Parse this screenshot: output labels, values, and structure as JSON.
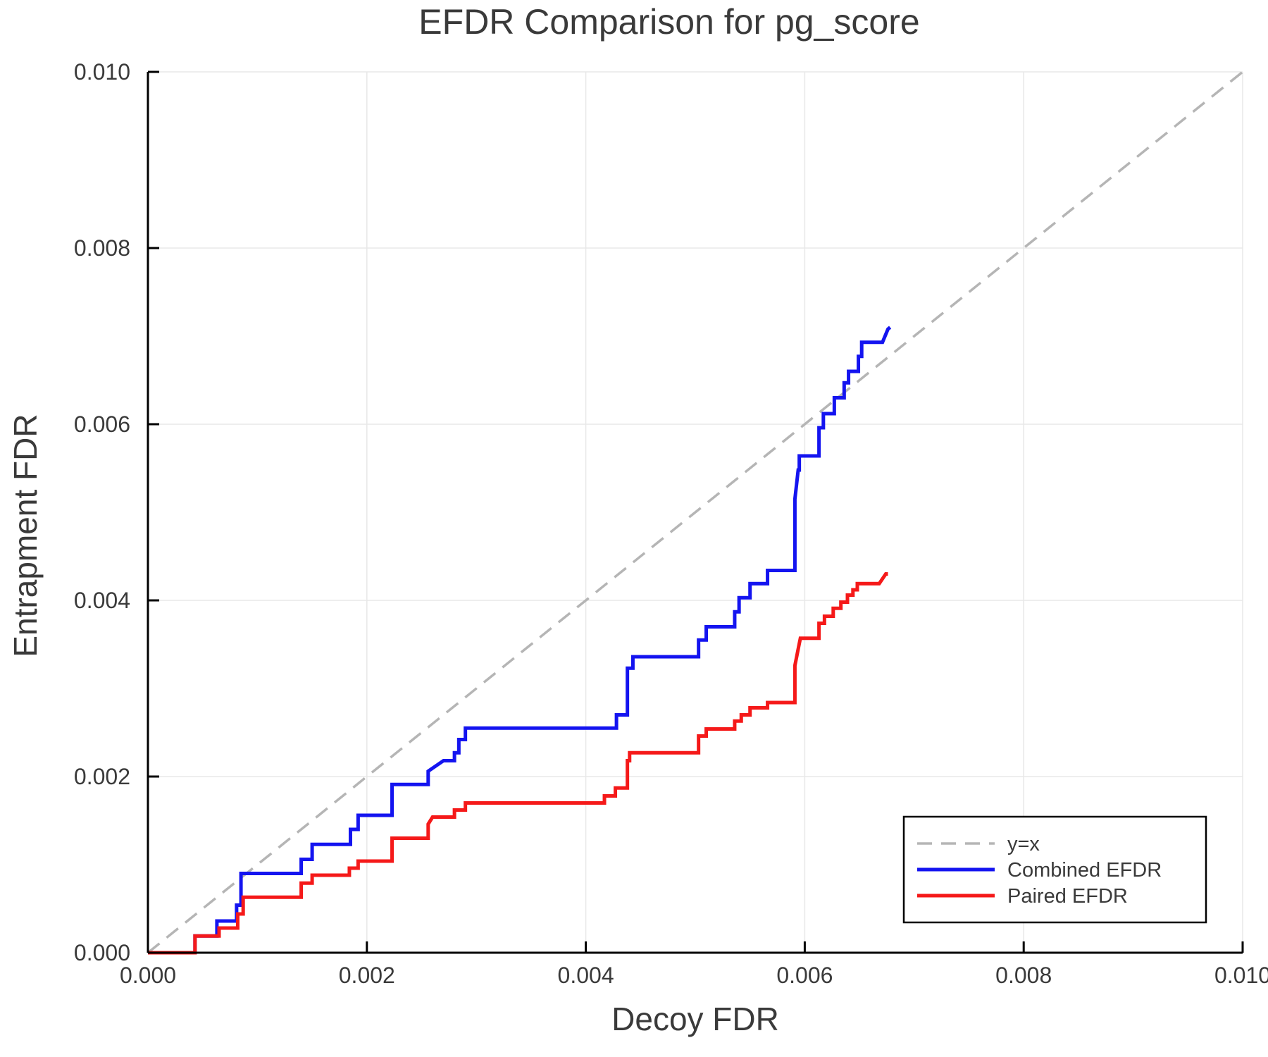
{
  "text_color": "#3a3a3a",
  "background_color": "#ffffff",
  "axes": {
    "x": {
      "label": "Decoy FDR",
      "ticks": [
        0.0,
        0.002,
        0.004,
        0.006,
        0.008,
        0.01
      ],
      "tick_format_decimals": 3
    },
    "y": {
      "label": "Entrapment FDR",
      "ticks": [
        0.0,
        0.002,
        0.004,
        0.006,
        0.008,
        0.01
      ],
      "tick_format_decimals": 3
    }
  },
  "legend": {
    "position": "lower right",
    "border_color": "#000000",
    "items": [
      {
        "label": "y=x"
      },
      {
        "label": "Combined EFDR"
      },
      {
        "label": "Paired EFDR"
      }
    ]
  },
  "chart_data": {
    "type": "line",
    "title": "EFDR Comparison for pg_score",
    "xlabel": "Decoy FDR",
    "ylabel": "Entrapment FDR",
    "xlim": [
      0.0,
      0.01
    ],
    "ylim": [
      0.0,
      0.01
    ],
    "grid": true,
    "legend_position": "lower right",
    "series": [
      {
        "name": "y=x",
        "color": "#b5b5b5",
        "dash": true,
        "points": [
          [
            0.0,
            0.0
          ],
          [
            0.01,
            0.01
          ]
        ]
      },
      {
        "name": "Combined EFDR",
        "color": "#1414f0",
        "dash": false,
        "points": [
          [
            0.0,
            0.0
          ],
          [
            0.00043,
            0.0
          ],
          [
            0.00043,
            0.00019
          ],
          [
            0.00063,
            0.00019
          ],
          [
            0.00063,
            0.00036
          ],
          [
            0.00081,
            0.00036
          ],
          [
            0.00081,
            0.00054
          ],
          [
            0.00085,
            0.00054
          ],
          [
            0.00085,
            0.0009
          ],
          [
            0.0014,
            0.0009
          ],
          [
            0.0014,
            0.00106
          ],
          [
            0.0015,
            0.00106
          ],
          [
            0.0015,
            0.00123
          ],
          [
            0.00185,
            0.00123
          ],
          [
            0.00185,
            0.0014
          ],
          [
            0.00192,
            0.0014
          ],
          [
            0.00192,
            0.00156
          ],
          [
            0.00223,
            0.00156
          ],
          [
            0.00223,
            0.00191
          ],
          [
            0.00256,
            0.00191
          ],
          [
            0.00256,
            0.00206
          ],
          [
            0.0027,
            0.00218
          ],
          [
            0.0028,
            0.00218
          ],
          [
            0.0028,
            0.00227
          ],
          [
            0.00284,
            0.00227
          ],
          [
            0.00284,
            0.00242
          ],
          [
            0.0029,
            0.00242
          ],
          [
            0.0029,
            0.00255
          ],
          [
            0.00428,
            0.00255
          ],
          [
            0.00428,
            0.0027
          ],
          [
            0.00438,
            0.0027
          ],
          [
            0.00438,
            0.00323
          ],
          [
            0.00443,
            0.00323
          ],
          [
            0.00443,
            0.00336
          ],
          [
            0.00503,
            0.00336
          ],
          [
            0.00503,
            0.00355
          ],
          [
            0.0051,
            0.00355
          ],
          [
            0.0051,
            0.0037
          ],
          [
            0.00536,
            0.0037
          ],
          [
            0.00536,
            0.00387
          ],
          [
            0.0054,
            0.00387
          ],
          [
            0.0054,
            0.00403
          ],
          [
            0.0055,
            0.00403
          ],
          [
            0.0055,
            0.00419
          ],
          [
            0.00566,
            0.00419
          ],
          [
            0.00566,
            0.00434
          ],
          [
            0.00591,
            0.00434
          ],
          [
            0.00591,
            0.00515
          ],
          [
            0.00594,
            0.00548
          ],
          [
            0.00595,
            0.00548
          ],
          [
            0.00595,
            0.00564
          ],
          [
            0.00613,
            0.00564
          ],
          [
            0.00613,
            0.00596
          ],
          [
            0.00617,
            0.00596
          ],
          [
            0.00617,
            0.00612
          ],
          [
            0.00627,
            0.00612
          ],
          [
            0.00627,
            0.0063
          ],
          [
            0.00636,
            0.0063
          ],
          [
            0.00636,
            0.00647
          ],
          [
            0.0064,
            0.00647
          ],
          [
            0.0064,
            0.0066
          ],
          [
            0.00649,
            0.0066
          ],
          [
            0.00649,
            0.00677
          ],
          [
            0.00652,
            0.00677
          ],
          [
            0.00652,
            0.00693
          ],
          [
            0.00671,
            0.00693
          ],
          [
            0.00676,
            0.00708
          ],
          [
            0.00678,
            0.0071
          ]
        ]
      },
      {
        "name": "Paired EFDR",
        "color": "#f51919",
        "dash": false,
        "points": [
          [
            0.0,
            0.0
          ],
          [
            0.00043,
            0.0
          ],
          [
            0.00043,
            0.00019
          ],
          [
            0.00065,
            0.00019
          ],
          [
            0.00065,
            0.00028
          ],
          [
            0.00082,
            0.00028
          ],
          [
            0.00082,
            0.00044
          ],
          [
            0.00087,
            0.00044
          ],
          [
            0.00087,
            0.00063
          ],
          [
            0.0014,
            0.00063
          ],
          [
            0.0014,
            0.00079
          ],
          [
            0.0015,
            0.00079
          ],
          [
            0.0015,
            0.00088
          ],
          [
            0.00184,
            0.00088
          ],
          [
            0.00184,
            0.00096
          ],
          [
            0.00192,
            0.00096
          ],
          [
            0.00192,
            0.00104
          ],
          [
            0.00223,
            0.00104
          ],
          [
            0.00223,
            0.0013
          ],
          [
            0.00256,
            0.0013
          ],
          [
            0.00256,
            0.00146
          ],
          [
            0.0026,
            0.00154
          ],
          [
            0.0028,
            0.00154
          ],
          [
            0.0028,
            0.00162
          ],
          [
            0.0029,
            0.00162
          ],
          [
            0.0029,
            0.0017
          ],
          [
            0.00417,
            0.0017
          ],
          [
            0.00417,
            0.00178
          ],
          [
            0.00427,
            0.00178
          ],
          [
            0.00427,
            0.00187
          ],
          [
            0.00438,
            0.00187
          ],
          [
            0.00438,
            0.00218
          ],
          [
            0.0044,
            0.00218
          ],
          [
            0.0044,
            0.00227
          ],
          [
            0.00503,
            0.00227
          ],
          [
            0.00503,
            0.00246
          ],
          [
            0.0051,
            0.00246
          ],
          [
            0.0051,
            0.00254
          ],
          [
            0.00536,
            0.00254
          ],
          [
            0.00536,
            0.00263
          ],
          [
            0.00542,
            0.00263
          ],
          [
            0.00542,
            0.0027
          ],
          [
            0.0055,
            0.0027
          ],
          [
            0.0055,
            0.00278
          ],
          [
            0.00566,
            0.00278
          ],
          [
            0.00566,
            0.00284
          ],
          [
            0.00591,
            0.00284
          ],
          [
            0.00591,
            0.00326
          ],
          [
            0.00595,
            0.00351
          ],
          [
            0.00596,
            0.00357
          ],
          [
            0.00613,
            0.00357
          ],
          [
            0.00613,
            0.00374
          ],
          [
            0.00618,
            0.00374
          ],
          [
            0.00618,
            0.00382
          ],
          [
            0.00626,
            0.00382
          ],
          [
            0.00626,
            0.00391
          ],
          [
            0.00633,
            0.00391
          ],
          [
            0.00633,
            0.00398
          ],
          [
            0.00639,
            0.00398
          ],
          [
            0.00639,
            0.00406
          ],
          [
            0.00644,
            0.00406
          ],
          [
            0.00644,
            0.00412
          ],
          [
            0.00648,
            0.00412
          ],
          [
            0.00648,
            0.00419
          ],
          [
            0.00668,
            0.00419
          ],
          [
            0.00674,
            0.0043
          ],
          [
            0.00676,
            0.0043
          ]
        ]
      }
    ]
  }
}
